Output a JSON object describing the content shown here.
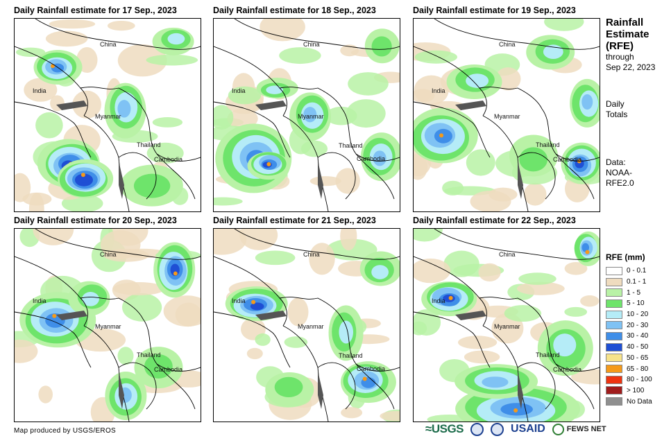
{
  "panels": [
    {
      "title": "Daily Rainfall estimate for 17 Sep., 2023",
      "labels": {
        "china": "China",
        "india": "India",
        "myanmar": "Myanmar",
        "thailand": "Thailand",
        "cambodia": "Cambodia"
      }
    },
    {
      "title": "Daily Rainfall estimate for 18 Sep., 2023",
      "labels": {
        "china": "China",
        "india": "India",
        "myanmar": "Myanmar",
        "thailand": "Thailand",
        "cambodia": "Cambodia"
      }
    },
    {
      "title": "Daily Rainfall estimate for 19 Sep., 2023",
      "labels": {
        "china": "China",
        "india": "India",
        "myanmar": "Myanmar",
        "thailand": "Thailand",
        "cambodia": "Cambodia"
      }
    },
    {
      "title": "Daily Rainfall estimate for 20 Sep., 2023",
      "labels": {
        "china": "China",
        "india": "India",
        "myanmar": "Myanmar",
        "thailand": "Thailand",
        "cambodia": "Cambodia"
      }
    },
    {
      "title": "Daily Rainfall estimate for 21 Sep., 2023",
      "labels": {
        "china": "China",
        "india": "India",
        "myanmar": "Myanmar",
        "thailand": "Thailand",
        "cambodia": "Cambodia"
      }
    },
    {
      "title": "Daily Rainfall estimate for 22 Sep., 2023",
      "labels": {
        "china": "China",
        "india": "India",
        "myanmar": "Myanmar",
        "thailand": "Thailand",
        "cambodia": "Cambodia"
      }
    }
  ],
  "sidebar": {
    "title_lines": [
      "Rainfall",
      "Estimate",
      "(RFE)"
    ],
    "through": "through",
    "date": "Sep 22, 2023",
    "totals_lines": [
      "Daily",
      "Totals"
    ],
    "data_lines": [
      "Data:",
      "NOAA-",
      "RFE2.0"
    ]
  },
  "legend": {
    "title": "RFE (mm)",
    "items": [
      {
        "label": "0 - 0.1",
        "color": "#ffffff"
      },
      {
        "label": "0.1 - 1",
        "color": "#efdcbf"
      },
      {
        "label": "1 - 5",
        "color": "#b9f2a6"
      },
      {
        "label": "5 - 10",
        "color": "#6ee46b"
      },
      {
        "label": "10 - 20",
        "color": "#b5ecf7"
      },
      {
        "label": "20 - 30",
        "color": "#7fc2f4"
      },
      {
        "label": "30 - 40",
        "color": "#3f8ee8"
      },
      {
        "label": "40 - 50",
        "color": "#1f4fd4"
      },
      {
        "label": "50 - 65",
        "color": "#f7e38a"
      },
      {
        "label": "65 - 80",
        "color": "#f59a1a"
      },
      {
        "label": "80 - 100",
        "color": "#ee3411"
      },
      {
        "label": "> 100",
        "color": "#a01c1c"
      },
      {
        "label": "No Data",
        "color": "#8f8f8f"
      }
    ]
  },
  "footer": {
    "credit": "Map produced by USGS/EROS",
    "logos": {
      "usgs": "≈USGS",
      "usaid": "USAID",
      "fews": "FEWS NET"
    }
  }
}
